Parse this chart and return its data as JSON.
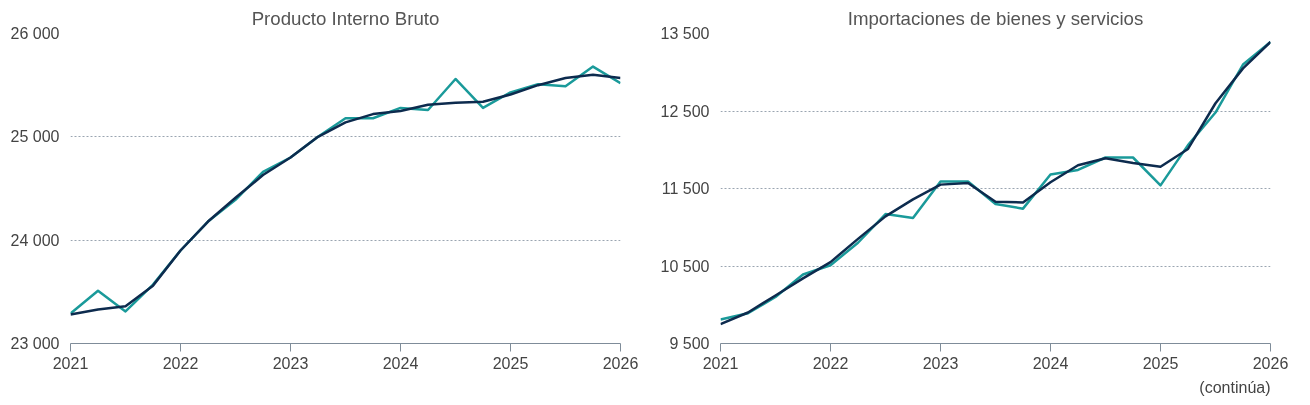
{
  "chart_data": [
    {
      "type": "line",
      "title": "Producto Interno Bruto",
      "x": [
        2021,
        2021.25,
        2021.5,
        2021.75,
        2022,
        2022.25,
        2022.5,
        2022.75,
        2023,
        2023.25,
        2023.5,
        2023.75,
        2024,
        2024.25,
        2024.5,
        2024.75,
        2025,
        2025.25,
        2025.5,
        2025.75,
        2026
      ],
      "series": [
        {
          "color": "#1a9a9a",
          "values": [
            23290,
            23510,
            23310,
            23570,
            23900,
            24180,
            24390,
            24660,
            24800,
            25000,
            25180,
            25180,
            25280,
            25260,
            25560,
            25280,
            25430,
            25510,
            25490,
            25680,
            25520
          ]
        },
        {
          "color": "#0d2b4e",
          "values": [
            23280,
            23330,
            23360,
            23560,
            23900,
            24180,
            24410,
            24630,
            24800,
            25000,
            25140,
            25220,
            25250,
            25310,
            25330,
            25340,
            25410,
            25500,
            25570,
            25600,
            25570
          ]
        }
      ],
      "xlim": [
        2021,
        2026
      ],
      "xticks": [
        2021,
        2022,
        2023,
        2024,
        2025,
        2026
      ],
      "ylim": [
        23000,
        26000
      ],
      "yticks": [
        {
          "value": 23000,
          "label": "23 000"
        },
        {
          "value": 24000,
          "label": "24 000"
        },
        {
          "value": 25000,
          "label": "25 000"
        },
        {
          "value": 26000,
          "label": "26 000"
        }
      ],
      "grid": "y",
      "line_style": "solid",
      "marker": "none"
    },
    {
      "type": "line",
      "title": "Importaciones de bienes y servicios",
      "x": [
        2021,
        2021.25,
        2021.5,
        2021.75,
        2022,
        2022.25,
        2022.5,
        2022.75,
        2023,
        2023.25,
        2023.5,
        2023.75,
        2024,
        2024.25,
        2024.5,
        2024.75,
        2025,
        2025.25,
        2025.5,
        2025.75,
        2026
      ],
      "series": [
        {
          "color": "#1a9a9a",
          "values": [
            9810,
            9890,
            10100,
            10390,
            10510,
            10800,
            11170,
            11120,
            11590,
            11590,
            11300,
            11240,
            11680,
            11740,
            11900,
            11900,
            11540,
            12060,
            12480,
            13100,
            13390
          ]
        },
        {
          "color": "#0d2b4e",
          "values": [
            9750,
            9900,
            10120,
            10340,
            10550,
            10850,
            11140,
            11360,
            11550,
            11570,
            11330,
            11320,
            11580,
            11800,
            11890,
            11830,
            11780,
            12010,
            12600,
            13050,
            13390
          ]
        }
      ],
      "xlim": [
        2021,
        2026
      ],
      "xticks": [
        2021,
        2022,
        2023,
        2024,
        2025,
        2026
      ],
      "ylim": [
        9500,
        13500
      ],
      "yticks": [
        {
          "value": 9500,
          "label": "9 500"
        },
        {
          "value": 10500,
          "label": "10 500"
        },
        {
          "value": 11500,
          "label": "11 500"
        },
        {
          "value": 12500,
          "label": "12 500"
        },
        {
          "value": 13500,
          "label": "13 500"
        }
      ],
      "grid": "y",
      "line_style": "solid",
      "marker": "none",
      "annotations": [
        "(continúa)"
      ]
    }
  ]
}
